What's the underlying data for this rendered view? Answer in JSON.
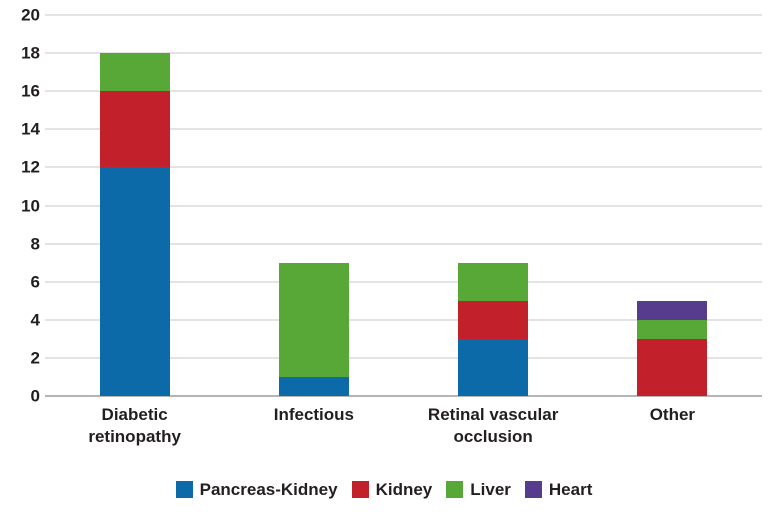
{
  "chart_data": {
    "type": "bar",
    "stacked": true,
    "title": "",
    "xlabel": "",
    "ylabel": "",
    "categories": [
      "Diabetic retinopathy",
      "Infectious",
      "Retinal vascular occlusion",
      "Other"
    ],
    "category_lines": [
      [
        "Diabetic",
        "retinopathy"
      ],
      [
        "Infectious"
      ],
      [
        "Retinal vascular",
        "occlusion"
      ],
      [
        "Other"
      ]
    ],
    "series": [
      {
        "name": "Pancreas-Kidney",
        "color": "#0c6aa9",
        "values": [
          12,
          1,
          3,
          0
        ]
      },
      {
        "name": "Kidney",
        "color": "#c2202b",
        "values": [
          4,
          0,
          2,
          3
        ]
      },
      {
        "name": "Liver",
        "color": "#58a838",
        "values": [
          2,
          6,
          2,
          1
        ]
      },
      {
        "name": "Heart",
        "color": "#573b8d",
        "values": [
          0,
          0,
          0,
          1
        ]
      }
    ],
    "totals": [
      18,
      7,
      7,
      5
    ],
    "ylim": [
      0,
      20
    ],
    "ytick_step": 2,
    "ytick_labels": [
      "0",
      "2",
      "4",
      "6",
      "8",
      "10",
      "12",
      "14",
      "16",
      "18",
      "20"
    ],
    "grid": true,
    "legend_position": "bottom",
    "colors": {
      "grid": "#e3e3e3",
      "axis_line": "#b5b5b5",
      "text": "#231f20",
      "background": "#ffffff"
    }
  }
}
